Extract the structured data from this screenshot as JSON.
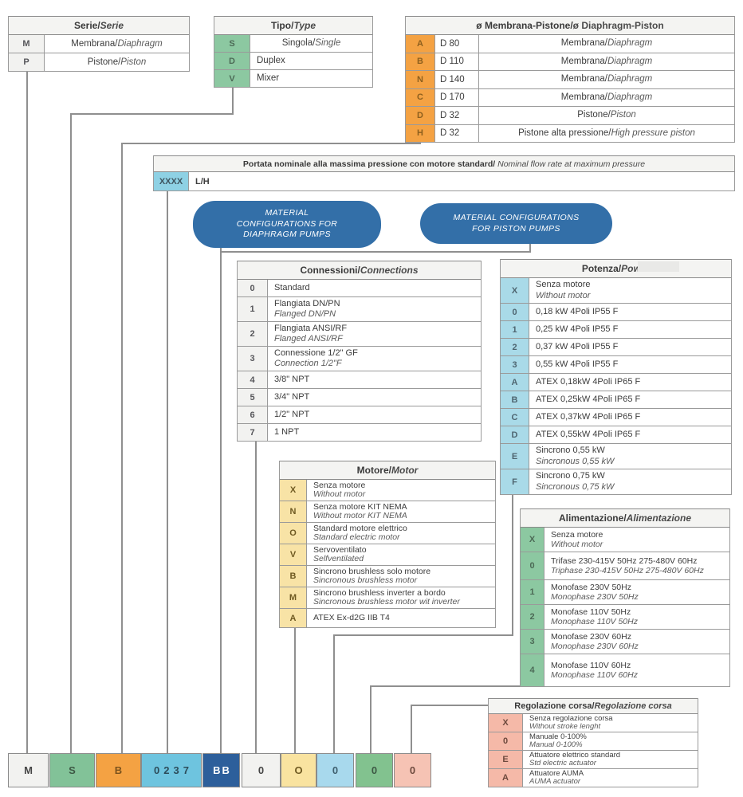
{
  "colors": {
    "table_green": "#8cc8a1",
    "orange": "#f4a243",
    "table_light_blue": "#a9dae8",
    "table_yellow": "#f8e3a6",
    "table_salmon": "#f5b9a8",
    "cyan": "#8ed1e4",
    "sky_blue": "#6ec4df",
    "dark_blue": "#2d5f9b",
    "box_blue": "#336fa8",
    "neutral_cell": "#f2f2f0",
    "line_gray": "#8f8f8f"
  },
  "tables": {
    "serie": {
      "title_it": "Serie",
      "title_en": "Serie",
      "code_bg": "#f2f2f0",
      "code_text": "#56565a",
      "rows": [
        {
          "code": "M",
          "mode": "inline",
          "it": "Membrana/ ",
          "en": "Diaphragm"
        },
        {
          "code": "P",
          "mode": "inline",
          "it": "Pistone/ ",
          "en": "Piston"
        }
      ]
    },
    "tipo": {
      "title_it": "Tipo",
      "title_en": "Type",
      "code_bg": "#8cc8a1",
      "code_text": "#4c6a56",
      "rows": [
        {
          "code": "S",
          "mode": "inline",
          "it": "Singola/",
          "en": "Single"
        },
        {
          "code": "D",
          "mode": "single",
          "it": "Duplex",
          "en": ""
        },
        {
          "code": "V",
          "mode": "single",
          "it": "Mixer",
          "en": ""
        }
      ]
    },
    "diaph": {
      "title_it": "ø Membrana-Pistone",
      "title_en": "ø Diaphragm-Piston",
      "en_italic": false,
      "code_bg": "#f4a243",
      "code_text": "#8d5f1e",
      "rows": [
        {
          "code": "A",
          "size": "D 80",
          "mode": "inline",
          "it": "Membrana/",
          "en": "Diaphragm"
        },
        {
          "code": "B",
          "size": "D 110",
          "mode": "inline",
          "it": "Membrana/",
          "en": "Diaphragm"
        },
        {
          "code": "N",
          "size": "D 140",
          "mode": "inline",
          "it": "Membrana/",
          "en": "Diaphragm"
        },
        {
          "code": "C",
          "size": "D 170",
          "mode": "inline",
          "it": "Membrana/",
          "en": "Diaphragm"
        },
        {
          "code": "D",
          "size": "D 32",
          "mode": "inline",
          "it": "Pistone/",
          "en": "Piston"
        },
        {
          "code": "H",
          "size": "D 32",
          "mode": "inline",
          "it": "Pistone alta pressione/",
          "en": "High pressure piston"
        }
      ]
    },
    "portata": {
      "title_it": "Portata nominale alla massima pressione con motore standard/",
      "title_en": " Nominal flow rate at maximum pressure",
      "code": "XXXX",
      "unit": "L/H"
    },
    "conn": {
      "title_it": "Connessioni",
      "title_en": "Connections",
      "code_bg": "#f2f2f0",
      "code_text": "#56565a",
      "rows": [
        {
          "code": "0",
          "mode": "single",
          "it": "Standard",
          "en": ""
        },
        {
          "code": "1",
          "mode": "stack",
          "it": "Flangiata DN/PN",
          "en": "Flanged DN/PN"
        },
        {
          "code": "2",
          "mode": "stack",
          "it": "Flangiata ANSI/RF",
          "en": "Flanged ANSI/RF"
        },
        {
          "code": "3",
          "mode": "stack",
          "it": "Connessione 1/2\" GF",
          "en": "Connection 1/2\"F"
        },
        {
          "code": "4",
          "mode": "single",
          "it": "3/8\" NPT",
          "en": ""
        },
        {
          "code": "5",
          "mode": "single",
          "it": "3/4\" NPT",
          "en": ""
        },
        {
          "code": "6",
          "mode": "single",
          "it": "1/2\" NPT",
          "en": ""
        },
        {
          "code": "7",
          "mode": "single",
          "it": "1 NPT",
          "en": ""
        }
      ]
    },
    "pot": {
      "title_it": "Potenza",
      "title_en": "Power",
      "code_bg": "#a9dae8",
      "code_text": "#4e6570",
      "rows": [
        {
          "code": "X",
          "mode": "stack",
          "it": "Senza motore",
          "en": "Without motor"
        },
        {
          "code": "0",
          "mode": "single",
          "it": "0,18 kW 4Poli IP55 F",
          "en": ""
        },
        {
          "code": "1",
          "mode": "single",
          "it": "0,25 kW 4Poli IP55 F",
          "en": ""
        },
        {
          "code": "2",
          "mode": "single",
          "it": "0,37 kW 4Poli IP55 F",
          "en": ""
        },
        {
          "code": "3",
          "mode": "single",
          "it": "0,55 kW 4Poli IP55 F",
          "en": ""
        },
        {
          "code": "A",
          "mode": "single",
          "it": "ATEX 0,18kW 4Poli IP65 F",
          "en": ""
        },
        {
          "code": "B",
          "mode": "single",
          "it": "ATEX 0,25kW 4Poli IP65 F",
          "en": ""
        },
        {
          "code": "C",
          "mode": "single",
          "it": "ATEX 0,37kW 4Poli IP65 F",
          "en": ""
        },
        {
          "code": "D",
          "mode": "single",
          "it": "ATEX 0,55kW 4Poli IP65 F",
          "en": ""
        },
        {
          "code": "E",
          "mode": "stack",
          "it": "Sincrono 0,55 kW",
          "en": "Sincronous 0,55 kW"
        },
        {
          "code": "F",
          "mode": "stack",
          "it": "Sincrono 0,75 kW",
          "en": "Sincronous 0,75 kW"
        }
      ]
    },
    "mot": {
      "title_it": "Motore",
      "title_en": "Motor",
      "code_bg": "#f8e3a6",
      "code_text": "#6f5a22",
      "rows": [
        {
          "code": "X",
          "mode": "stack",
          "it": "Senza motore",
          "en": "Without motor"
        },
        {
          "code": "N",
          "mode": "stack",
          "it": "Senza motore KIT NEMA",
          "en": "Without motor KIT NEMA"
        },
        {
          "code": "O",
          "mode": "stack",
          "it": "Standard motore elettrico",
          "en": "Standard electric motor"
        },
        {
          "code": "V",
          "mode": "stack",
          "it": "Servoventilato",
          "en": "Selfventilated"
        },
        {
          "code": "B",
          "mode": "stack",
          "it": "Sincrono brushless solo motore",
          "en": "Sincronous brushless motor"
        },
        {
          "code": "M",
          "mode": "stack",
          "it": "Sincrono brushless inverter a bordo",
          "en": "Sincronous brushless motor wit inverter"
        },
        {
          "code": "A",
          "mode": "single",
          "it": "ATEX Ex-d2G IIB T4",
          "en": ""
        }
      ]
    },
    "alim": {
      "title_it": "Alimentazione",
      "title_en": "Alimentazione",
      "code_bg": "#8cc8a1",
      "code_text": "#4c6a56",
      "rows": [
        {
          "code": "X",
          "mode": "stack",
          "it": "Senza motore",
          "en": "Without motor"
        },
        {
          "code": "0",
          "mode": "stack",
          "it": "Trifase 230-415V 50Hz 275-480V 60Hz",
          "en": "Triphase 230-415V 50Hz 275-480V 60Hz"
        },
        {
          "code": "1",
          "mode": "stack",
          "it": "Monofase 230V 50Hz",
          "en": "Monophase 230V 50Hz"
        },
        {
          "code": "2",
          "mode": "stack",
          "it": "Monofase 110V 50Hz",
          "en": "Monophase 110V 50Hz"
        },
        {
          "code": "3",
          "mode": "stack",
          "it": "Monofase 230V 60Hz",
          "en": "Monophase 230V 60Hz"
        },
        {
          "code": "4",
          "mode": "stack",
          "it": "Monofase 110V 60Hz",
          "en": "Monophase 110V 60Hz"
        }
      ]
    },
    "reg": {
      "title_it": "Regolazione corsa",
      "title_en": "Regolazione corsa",
      "code_bg": "#f5b9a8",
      "code_text": "#6e4a3e",
      "rows": [
        {
          "code": "X",
          "mode": "stack",
          "it": "Senza regolazione corsa",
          "en": "Without stroke lenght"
        },
        {
          "code": "0",
          "mode": "stack",
          "it": "Manuale 0-100%",
          "en": "Manual 0-100%"
        },
        {
          "code": "E",
          "mode": "stack",
          "it": "Attuatore elettrico standard",
          "en": "Std electric actuator"
        },
        {
          "code": "A",
          "mode": "stack",
          "it": "Attuatore AUMA",
          "en": "AUMA actuator"
        }
      ]
    }
  },
  "material_boxes": [
    {
      "id": "box-diaphragm",
      "lines": [
        "MATERIAL",
        "CONFIGURATIONS FOR",
        "DIAPHRAGM PUMPS"
      ]
    },
    {
      "id": "box-piston",
      "lines": [
        "MATERIAL CONFIGURATIONS",
        "FOR PISTON PUMPS"
      ]
    }
  ],
  "code_strip": {
    "cells": [
      {
        "code": "M",
        "bg": "#f2f2f0",
        "fg": "#454545"
      },
      {
        "code": "S",
        "bg": "#82c298",
        "fg": "#3d5844"
      },
      {
        "code": "B",
        "bg": "#f4a243",
        "fg": "#7c531d"
      },
      {
        "code": "0237",
        "bg": "#6ec4df",
        "fg": "#2c4c5a"
      },
      {
        "code": "BB",
        "bg": "#2d5f9b",
        "fg": "#ffffff"
      },
      {
        "code": "0",
        "bg": "#f2f2f0",
        "fg": "#454545"
      },
      {
        "code": "O",
        "bg": "#f9e3a0",
        "fg": "#6f5a22"
      },
      {
        "code": "0",
        "bg": "#a8d9ed",
        "fg": "#3f5f6e"
      },
      {
        "code": "0",
        "bg": "#82c28f",
        "fg": "#3d5844"
      },
      {
        "code": "0",
        "bg": "#f6c3b4",
        "fg": "#6e4a3e"
      }
    ]
  }
}
